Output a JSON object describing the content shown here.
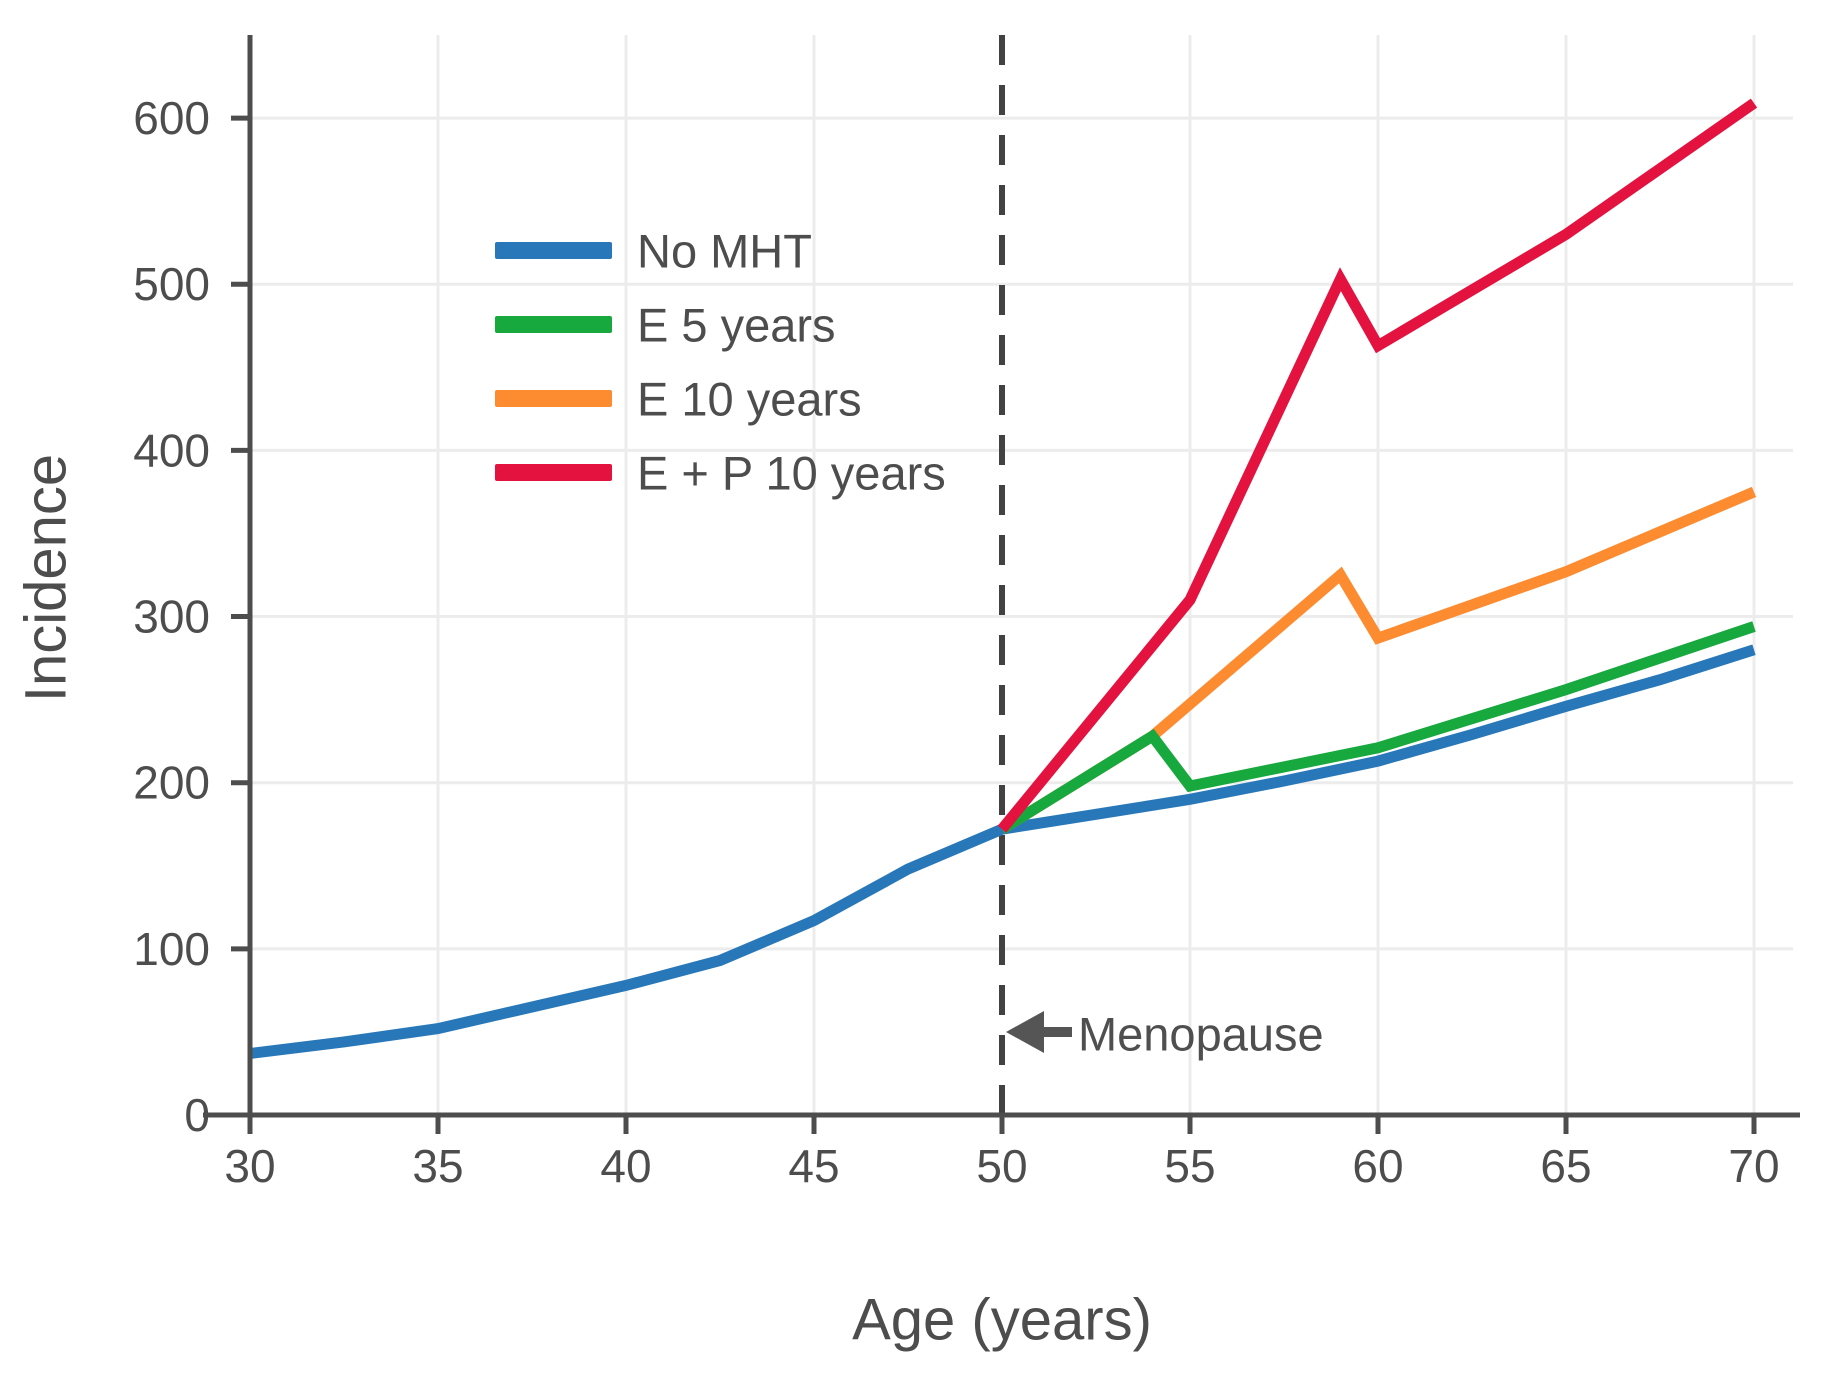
{
  "chart_data": {
    "type": "line",
    "title": "",
    "xlabel": "Age (years)",
    "ylabel": "Incidence",
    "xlim": [
      30,
      71
    ],
    "ylim": [
      0,
      650
    ],
    "x_ticks": [
      30,
      35,
      40,
      45,
      50,
      55,
      60,
      65,
      70
    ],
    "y_ticks": [
      0,
      100,
      200,
      300,
      400,
      500,
      600
    ],
    "grid": true,
    "grid_color": "#ececec",
    "axis_color": "#4d4d4d",
    "legend_position": "upper-left-inside",
    "vline": {
      "x": 50,
      "style": "dashed",
      "color": "#424242"
    },
    "annotations": [
      {
        "text": "Menopause",
        "x": 51.7,
        "y": 50,
        "arrow": "left",
        "arrow_points_to_x": 50
      }
    ],
    "series": [
      {
        "name": "No MHT",
        "color": "#2878B9",
        "points": [
          [
            30,
            37
          ],
          [
            32.5,
            44
          ],
          [
            35,
            52
          ],
          [
            37.5,
            65
          ],
          [
            40,
            78
          ],
          [
            42.5,
            93
          ],
          [
            45,
            117
          ],
          [
            47.5,
            148
          ],
          [
            50,
            172
          ],
          [
            52.5,
            181
          ],
          [
            55,
            190
          ],
          [
            57.5,
            201
          ],
          [
            60,
            213
          ],
          [
            62.5,
            229
          ],
          [
            65,
            246
          ],
          [
            67.5,
            262
          ],
          [
            70,
            280
          ]
        ]
      },
      {
        "name": "E 5 years",
        "color": "#17A83E",
        "points": [
          [
            50,
            172
          ],
          [
            54,
            228
          ],
          [
            55,
            198
          ],
          [
            60,
            221
          ],
          [
            65,
            256
          ],
          [
            70,
            294
          ]
        ]
      },
      {
        "name": "E 10 years",
        "color": "#FD8B30",
        "points": [
          [
            50,
            172
          ],
          [
            54,
            228
          ],
          [
            59,
            325
          ],
          [
            60,
            287
          ],
          [
            65,
            327
          ],
          [
            70,
            375
          ]
        ]
      },
      {
        "name": "E + P 10 years",
        "color": "#E3123F",
        "points": [
          [
            50,
            172
          ],
          [
            55,
            310
          ],
          [
            59,
            503
          ],
          [
            60,
            463
          ],
          [
            65,
            530
          ],
          [
            70,
            609
          ]
        ]
      }
    ]
  }
}
